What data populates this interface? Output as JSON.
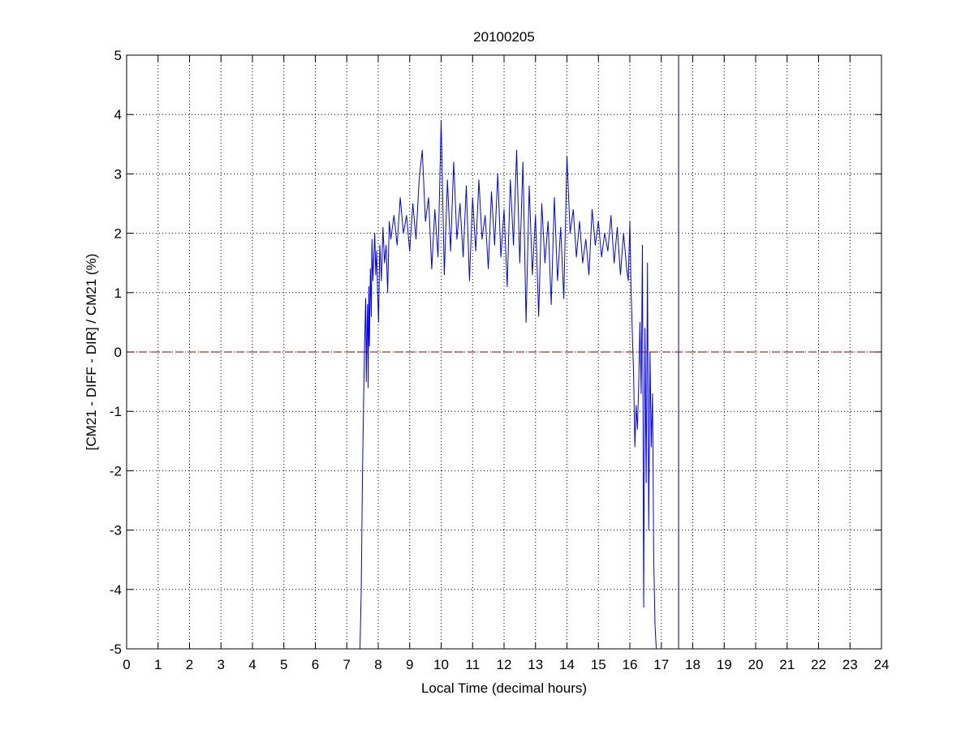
{
  "chart_data": {
    "type": "line",
    "title": "20100205",
    "xlabel": "Local Time (decimal hours)",
    "ylabel": "[CM21 - DIFF - DIR] / CM21 (%)",
    "xlim": [
      0,
      24
    ],
    "ylim": [
      -5,
      5
    ],
    "xticks": [
      0,
      1,
      2,
      3,
      4,
      5,
      6,
      7,
      8,
      9,
      10,
      11,
      12,
      13,
      14,
      15,
      16,
      17,
      18,
      19,
      20,
      21,
      22,
      23,
      24
    ],
    "yticks": [
      -5,
      -4,
      -3,
      -2,
      -1,
      0,
      1,
      2,
      3,
      4,
      5
    ],
    "grid": true,
    "legend": "none",
    "series": [
      {
        "color": "#0000ff",
        "style": "solid",
        "x": [
          7.42,
          7.46,
          7.5,
          7.53,
          7.56,
          7.6,
          7.62,
          7.64,
          7.66,
          7.68,
          7.7,
          7.72,
          7.75,
          7.78,
          7.8,
          7.83,
          7.86,
          7.89,
          7.92,
          7.95,
          7.98,
          8.01,
          8.05,
          8.1,
          8.15,
          8.2,
          8.25,
          8.3,
          8.35,
          8.4,
          8.5,
          8.6,
          8.7,
          8.8,
          8.9,
          9.0,
          9.1,
          9.2,
          9.3,
          9.4,
          9.5,
          9.6,
          9.7,
          9.8,
          9.9,
          9.95,
          10.0,
          10.05,
          10.1,
          10.2,
          10.3,
          10.4,
          10.5,
          10.6,
          10.7,
          10.8,
          10.9,
          11.0,
          11.1,
          11.2,
          11.3,
          11.4,
          11.5,
          11.6,
          11.7,
          11.8,
          11.9,
          12.0,
          12.1,
          12.2,
          12.3,
          12.4,
          12.5,
          12.6,
          12.7,
          12.8,
          12.9,
          13.0,
          13.1,
          13.2,
          13.3,
          13.4,
          13.5,
          13.6,
          13.7,
          13.8,
          13.9,
          14.0,
          14.1,
          14.2,
          14.3,
          14.4,
          14.5,
          14.6,
          14.7,
          14.8,
          14.9,
          15.0,
          15.1,
          15.2,
          15.3,
          15.4,
          15.5,
          15.6,
          15.7,
          15.8,
          15.9,
          15.95,
          16.0,
          16.04,
          16.08,
          16.12,
          16.16,
          16.2,
          16.24,
          16.28,
          16.32,
          16.36,
          16.4,
          16.44,
          16.48,
          16.52,
          16.56,
          16.6,
          16.64,
          16.68,
          16.72,
          16.76,
          16.8,
          16.84
        ],
        "y": [
          -5.0,
          -4.0,
          -2.0,
          -1.0,
          0.0,
          0.9,
          -0.5,
          0.3,
          0.8,
          -0.6,
          1.1,
          0.1,
          1.4,
          0.6,
          1.9,
          1.2,
          1.6,
          2.0,
          1.3,
          1.7,
          1.0,
          0.5,
          1.8,
          1.2,
          2.1,
          1.5,
          1.8,
          1.0,
          2.2,
          1.9,
          2.3,
          1.8,
          2.6,
          2.0,
          2.3,
          1.7,
          2.5,
          1.9,
          2.9,
          3.4,
          2.2,
          2.6,
          1.4,
          2.4,
          1.6,
          2.7,
          3.9,
          2.6,
          1.3,
          2.9,
          1.7,
          3.2,
          1.9,
          2.5,
          1.6,
          2.8,
          1.2,
          2.6,
          1.7,
          2.9,
          1.9,
          2.3,
          1.4,
          2.7,
          1.8,
          3.0,
          1.6,
          2.4,
          1.1,
          2.9,
          1.8,
          3.4,
          1.5,
          3.2,
          0.5,
          2.8,
          1.3,
          2.3,
          0.6,
          2.5,
          1.5,
          2.2,
          0.8,
          2.6,
          1.2,
          2.1,
          0.9,
          3.3,
          2.0,
          2.4,
          1.6,
          2.2,
          1.5,
          1.9,
          1.3,
          2.4,
          1.8,
          2.2,
          1.6,
          2.0,
          1.7,
          2.3,
          1.5,
          2.1,
          1.3,
          2.0,
          1.4,
          1.2,
          2.2,
          1.0,
          0.3,
          -0.4,
          -1.6,
          -0.9,
          -1.3,
          -0.6,
          0.5,
          -0.7,
          1.8,
          -4.3,
          0.4,
          -2.2,
          1.5,
          -3.0,
          0.0,
          -1.6,
          -0.7,
          -3.5,
          -4.6,
          -5.0
        ]
      },
      {
        "color": "#8b0000",
        "style": "dashed",
        "x": [
          0,
          24
        ],
        "y": [
          0,
          0
        ]
      },
      {
        "color": "#00008b",
        "style": "solid",
        "x": [
          17.55,
          17.55
        ],
        "y": [
          -5,
          5
        ]
      }
    ]
  }
}
